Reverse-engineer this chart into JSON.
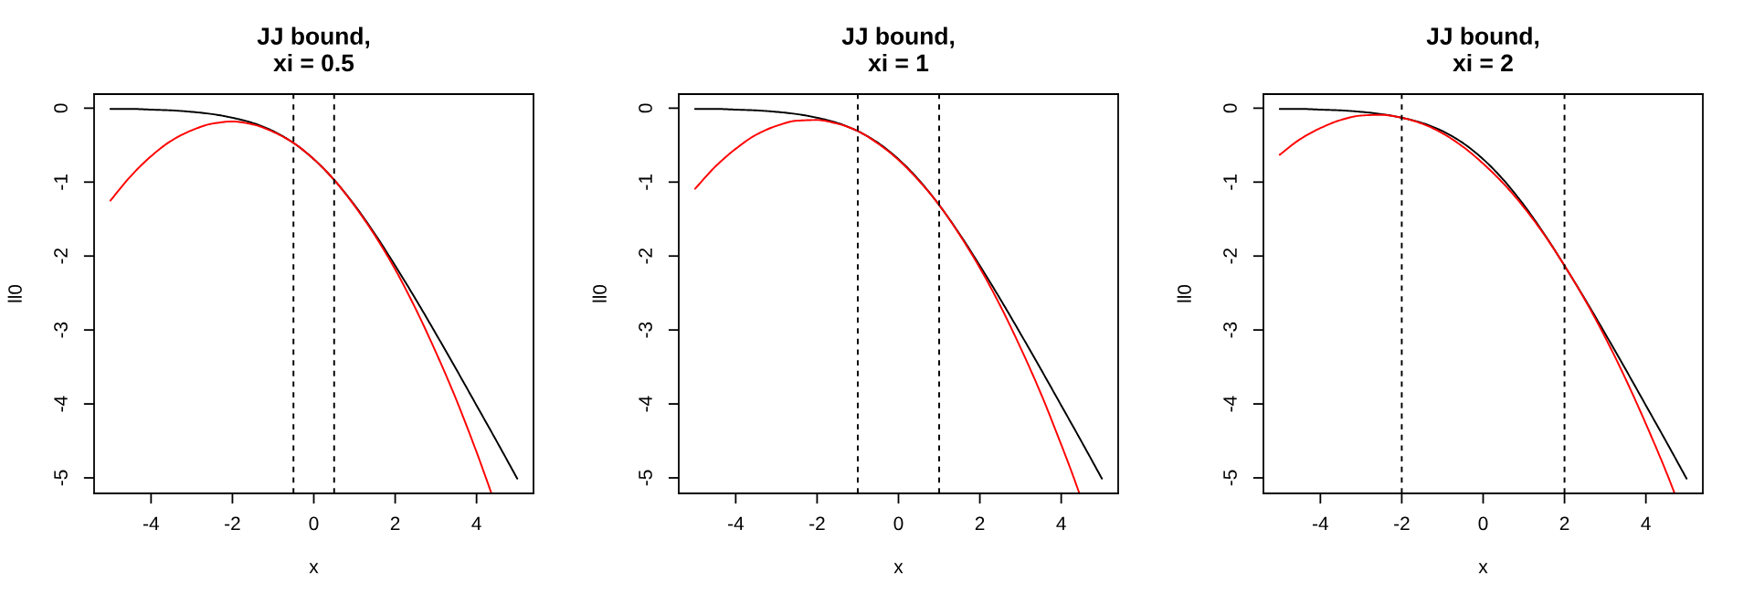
{
  "chart_data": [
    {
      "type": "line",
      "title": "JJ bound,\nxi = 0.5",
      "xlabel": "x",
      "ylabel": "ll0",
      "xlim": [
        -5.4,
        5.4
      ],
      "ylim": [
        -5.21,
        0.19
      ],
      "xticks": [
        -4,
        -2,
        0,
        2,
        4
      ],
      "yticks": [
        0,
        -1,
        -2,
        -3,
        -4,
        -5
      ],
      "series": [
        {
          "color": "#000000",
          "x": [
            -5,
            -4.5,
            -4,
            -3.5,
            -3,
            -2.5,
            -2,
            -1.5,
            -1,
            -0.5,
            0,
            0.5,
            1,
            1.5,
            2,
            2.5,
            3,
            3.5,
            4,
            4.5,
            5
          ],
          "values": [
            -0.01,
            -0.01,
            -0.02,
            -0.03,
            -0.05,
            -0.08,
            -0.13,
            -0.2,
            -0.31,
            -0.47,
            -0.69,
            -0.97,
            -1.31,
            -1.7,
            -2.13,
            -2.58,
            -3.05,
            -3.53,
            -4.02,
            -4.51,
            -5.01
          ]
        },
        {
          "color": "#ff0000",
          "x": [
            -5,
            -4.5,
            -4,
            -3.5,
            -3,
            -2.5,
            -2,
            -1.5,
            -1,
            -0.5,
            0,
            0.5,
            1,
            1.5,
            2,
            2.5,
            3,
            3.5,
            4,
            4.25,
            4.36
          ],
          "values": [
            -1.25,
            -0.92,
            -0.65,
            -0.44,
            -0.3,
            -0.21,
            -0.18,
            -0.22,
            -0.32,
            -0.47,
            -0.69,
            -0.97,
            -1.32,
            -1.72,
            -2.18,
            -2.71,
            -3.3,
            -3.94,
            -4.65,
            -5.03,
            -5.2
          ]
        }
      ],
      "ref_lines": [
        {
          "axis": "x",
          "value": -0.5,
          "color": "#000000",
          "line_style": "dashed"
        },
        {
          "axis": "x",
          "value": 0.5,
          "color": "#000000",
          "line_style": "dashed"
        }
      ]
    },
    {
      "type": "line",
      "title": "JJ bound,\nxi = 1",
      "xlabel": "x",
      "ylabel": "ll0",
      "xlim": [
        -5.4,
        5.4
      ],
      "ylim": [
        -5.21,
        0.19
      ],
      "xticks": [
        -4,
        -2,
        0,
        2,
        4
      ],
      "yticks": [
        0,
        -1,
        -2,
        -3,
        -4,
        -5
      ],
      "series": [
        {
          "color": "#000000",
          "x": [
            -5,
            -4.5,
            -4,
            -3.5,
            -3,
            -2.5,
            -2,
            -1.5,
            -1,
            -0.5,
            0,
            0.5,
            1,
            1.5,
            2,
            2.5,
            3,
            3.5,
            4,
            4.5,
            5
          ],
          "values": [
            -0.01,
            -0.01,
            -0.02,
            -0.03,
            -0.05,
            -0.08,
            -0.13,
            -0.2,
            -0.31,
            -0.47,
            -0.69,
            -0.97,
            -1.31,
            -1.7,
            -2.13,
            -2.58,
            -3.05,
            -3.53,
            -4.02,
            -4.51,
            -5.01
          ]
        },
        {
          "color": "#ff0000",
          "x": [
            -5,
            -4.5,
            -4,
            -3.5,
            -3,
            -2.5,
            -2,
            -1.5,
            -1,
            -0.5,
            0,
            0.5,
            1,
            1.5,
            2,
            2.5,
            3,
            3.5,
            4,
            4.25,
            4.44
          ],
          "values": [
            -1.09,
            -0.79,
            -0.55,
            -0.36,
            -0.24,
            -0.17,
            -0.16,
            -0.21,
            -0.31,
            -0.48,
            -0.7,
            -0.98,
            -1.31,
            -1.71,
            -2.16,
            -2.67,
            -3.24,
            -3.86,
            -4.55,
            -4.91,
            -5.2
          ]
        }
      ],
      "ref_lines": [
        {
          "axis": "x",
          "value": -1,
          "color": "#000000",
          "line_style": "dashed"
        },
        {
          "axis": "x",
          "value": 1,
          "color": "#000000",
          "line_style": "dashed"
        }
      ]
    },
    {
      "type": "line",
      "title": "JJ bound,\nxi = 2",
      "xlabel": "x",
      "ylabel": "ll0",
      "xlim": [
        -5.4,
        5.4
      ],
      "ylim": [
        -5.21,
        0.19
      ],
      "xticks": [
        -4,
        -2,
        0,
        2,
        4
      ],
      "yticks": [
        0,
        -1,
        -2,
        -3,
        -4,
        -5
      ],
      "series": [
        {
          "color": "#000000",
          "x": [
            -5,
            -4.5,
            -4,
            -3.5,
            -3,
            -2.5,
            -2,
            -1.5,
            -1,
            -0.5,
            0,
            0.5,
            1,
            1.5,
            2,
            2.5,
            3,
            3.5,
            4,
            4.5,
            5
          ],
          "values": [
            -0.01,
            -0.01,
            -0.02,
            -0.03,
            -0.05,
            -0.08,
            -0.13,
            -0.2,
            -0.31,
            -0.47,
            -0.69,
            -0.97,
            -1.31,
            -1.7,
            -2.13,
            -2.58,
            -3.05,
            -3.53,
            -4.02,
            -4.51,
            -5.01
          ]
        },
        {
          "color": "#ff0000",
          "x": [
            -5,
            -4.5,
            -4,
            -3.5,
            -3,
            -2.5,
            -2,
            -1.5,
            -1,
            -0.5,
            0,
            0.5,
            1,
            1.5,
            2,
            2.5,
            3,
            3.5,
            4,
            4.5,
            4.7
          ],
          "values": [
            -0.63,
            -0.42,
            -0.27,
            -0.16,
            -0.1,
            -0.09,
            -0.13,
            -0.21,
            -0.34,
            -0.52,
            -0.75,
            -1.02,
            -1.34,
            -1.71,
            -2.13,
            -2.59,
            -3.1,
            -3.66,
            -4.27,
            -4.92,
            -5.2
          ]
        }
      ],
      "ref_lines": [
        {
          "axis": "x",
          "value": -2,
          "color": "#000000",
          "line_style": "dashed"
        },
        {
          "axis": "x",
          "value": 2,
          "color": "#000000",
          "line_style": "dashed"
        }
      ]
    }
  ]
}
